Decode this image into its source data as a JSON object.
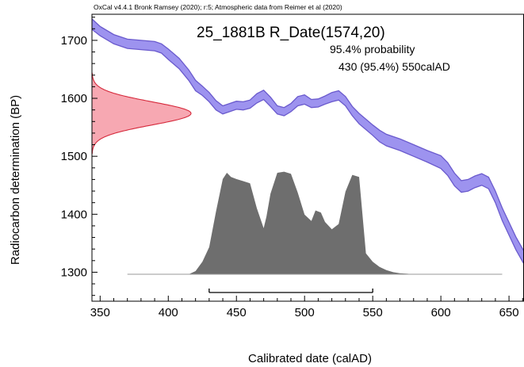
{
  "chart_data": {
    "type": "area",
    "header": "OxCal v4.4.1 Bronk Ramsey (2020); r:5; Atmospheric data from Reimer et al (2020)",
    "title": "25_1881B R_Date(1574,20)",
    "probability_label": "95.4% probability",
    "range_label": "430 (95.4%) 550calAD",
    "xlabel": "Calibrated date (calAD)",
    "ylabel": "Radiocarbon determination (BP)",
    "xlim": [
      344,
      661
    ],
    "ylim": [
      1250,
      1745
    ],
    "x_ticks": [
      350,
      400,
      450,
      500,
      550,
      600,
      650
    ],
    "y_ticks": [
      1300,
      1400,
      1500,
      1600,
      1700
    ],
    "colors": {
      "calibration_curve": "#6A5ACD",
      "calibration_fill": "#9D93EF",
      "radiocarbon_fill": "#F7A8B2",
      "radiocarbon_line": "#D62A3C",
      "posterior_fill": "#6E6E6E",
      "baseline": "#9A9A9A"
    },
    "calibration_curve": {
      "x": [
        344,
        350,
        360,
        370,
        380,
        390,
        395,
        400,
        408,
        415,
        420,
        425,
        430,
        435,
        440,
        445,
        450,
        455,
        460,
        465,
        470,
        475,
        480,
        485,
        490,
        495,
        500,
        505,
        510,
        515,
        520,
        525,
        530,
        535,
        540,
        545,
        550,
        555,
        560,
        570,
        580,
        590,
        600,
        605,
        610,
        615,
        620,
        625,
        630,
        635,
        640,
        645,
        650,
        655,
        661
      ],
      "y": [
        1728,
        1716,
        1702,
        1694,
        1692,
        1690,
        1686,
        1676,
        1660,
        1640,
        1622,
        1613,
        1602,
        1588,
        1580,
        1584,
        1588,
        1587,
        1590,
        1600,
        1606,
        1594,
        1580,
        1577,
        1584,
        1595,
        1598,
        1591,
        1592,
        1597,
        1602,
        1605,
        1595,
        1578,
        1565,
        1555,
        1545,
        1535,
        1528,
        1520,
        1510,
        1500,
        1490,
        1478,
        1460,
        1448,
        1450,
        1456,
        1460,
        1454,
        1430,
        1400,
        1375,
        1350,
        1325
      ],
      "error": [
        9,
        8,
        8,
        8,
        8,
        8,
        8,
        9,
        9,
        9,
        9,
        8,
        8,
        8,
        7,
        7,
        7,
        7,
        7,
        8,
        8,
        8,
        7,
        7,
        7,
        8,
        8,
        7,
        7,
        7,
        8,
        8,
        8,
        8,
        9,
        9,
        9,
        10,
        10,
        10,
        10,
        10,
        11,
        11,
        11,
        10,
        10,
        10,
        10,
        10,
        10,
        11,
        11,
        11,
        11
      ]
    },
    "radiocarbon_date": {
      "mean": 1574,
      "sigma": 20
    },
    "posterior": {
      "x": [
        370,
        415,
        420,
        425,
        430,
        435,
        440,
        443,
        446,
        450,
        455,
        460,
        465,
        470,
        472,
        475,
        480,
        485,
        490,
        495,
        500,
        505,
        508,
        512,
        515,
        520,
        525,
        530,
        535,
        540,
        545,
        550,
        555,
        560,
        565,
        570,
        575,
        580,
        585,
        590,
        645
      ],
      "p": [
        0,
        0,
        0.03,
        0.12,
        0.26,
        0.6,
        0.91,
        0.97,
        0.93,
        0.91,
        0.89,
        0.87,
        0.63,
        0.44,
        0.55,
        0.77,
        0.97,
        0.98,
        0.96,
        0.78,
        0.57,
        0.51,
        0.61,
        0.59,
        0.5,
        0.43,
        0.48,
        0.79,
        0.95,
        0.93,
        0.2,
        0.12,
        0.07,
        0.04,
        0.02,
        0.01,
        0.005,
        0,
        0,
        0,
        0
      ]
    },
    "range_95": [
      430,
      550
    ]
  }
}
